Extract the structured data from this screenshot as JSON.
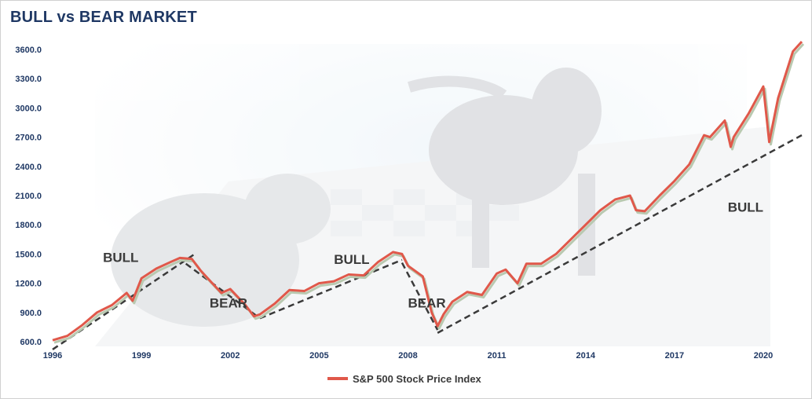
{
  "colors": {
    "series": "#e0584a",
    "title": "#1f3864",
    "trend": "#3a3a3a",
    "axis_text": "#1f3864"
  },
  "chart_data": {
    "type": "line",
    "title": "BULL vs BEAR MARKET",
    "xlabel": "",
    "ylabel": "",
    "ylim": [
      600,
      3600
    ],
    "xlim": [
      1996,
      2021.3
    ],
    "yticks": [
      "600.0",
      "900.0",
      "1200.0",
      "1500.0",
      "1800.0",
      "2100.0",
      "2400.0",
      "2700.0",
      "3000.0",
      "3300.0",
      "3600.0"
    ],
    "xticks": [
      "1996",
      "1999",
      "2002",
      "2005",
      "2008",
      "2011",
      "2014",
      "2017",
      "2020"
    ],
    "grid": false,
    "legend_position": "bottom",
    "series": [
      {
        "name": "S&P 500 Stock Price Index",
        "x": [
          1996.0,
          1996.5,
          1997.0,
          1997.5,
          1998.0,
          1998.5,
          1998.7,
          1999.0,
          1999.5,
          2000.0,
          2000.3,
          2000.7,
          2001.0,
          2001.3,
          2001.7,
          2002.0,
          2002.5,
          2002.8,
          2003.0,
          2003.5,
          2004.0,
          2004.5,
          2005.0,
          2005.5,
          2006.0,
          2006.5,
          2007.0,
          2007.5,
          2007.8,
          2008.0,
          2008.5,
          2008.8,
          2009.0,
          2009.2,
          2009.5,
          2010.0,
          2010.5,
          2011.0,
          2011.3,
          2011.7,
          2012.0,
          2012.5,
          2013.0,
          2013.5,
          2014.0,
          2014.5,
          2015.0,
          2015.5,
          2015.7,
          2016.0,
          2016.5,
          2017.0,
          2017.5,
          2018.0,
          2018.2,
          2018.7,
          2018.9,
          2019.0,
          2019.5,
          2020.0,
          2020.2,
          2020.5,
          2021.0,
          2021.3
        ],
        "values": [
          615,
          660,
          770,
          900,
          975,
          1100,
          1020,
          1250,
          1350,
          1420,
          1460,
          1450,
          1330,
          1230,
          1100,
          1140,
          980,
          860,
          880,
          990,
          1130,
          1120,
          1200,
          1220,
          1290,
          1280,
          1420,
          1520,
          1500,
          1380,
          1270,
          900,
          760,
          880,
          1010,
          1110,
          1080,
          1300,
          1340,
          1200,
          1400,
          1400,
          1500,
          1650,
          1800,
          1950,
          2060,
          2100,
          1950,
          1940,
          2100,
          2250,
          2420,
          2720,
          2700,
          2870,
          2600,
          2700,
          2940,
          3220,
          2650,
          3100,
          3580,
          3780
        ]
      }
    ],
    "trend_lines": [
      {
        "label": "BULL",
        "x": [
          1996.0,
          2000.8
        ],
        "y": [
          520,
          1500
        ]
      },
      {
        "label": "BEAR",
        "x": [
          2000.5,
          2003.0
        ],
        "y": [
          1400,
          840
        ]
      },
      {
        "label": "BULL",
        "x": [
          2003.0,
          2007.8
        ],
        "y": [
          840,
          1440
        ]
      },
      {
        "label": "BEAR",
        "x": [
          2007.8,
          2009.0
        ],
        "y": [
          1410,
          720
        ]
      },
      {
        "label": "BULL",
        "x": [
          2009.0,
          2021.3
        ],
        "y": [
          690,
          2720
        ]
      }
    ],
    "annotations": [
      {
        "text": "BULL",
        "x": 1997.7,
        "y": 1420
      },
      {
        "text": "BEAR",
        "x": 2001.3,
        "y": 950
      },
      {
        "text": "BULL",
        "x": 2005.5,
        "y": 1400
      },
      {
        "text": "BEAR",
        "x": 2008.0,
        "y": 950
      },
      {
        "text": "BULL",
        "x": 2018.8,
        "y": 1935
      }
    ]
  }
}
